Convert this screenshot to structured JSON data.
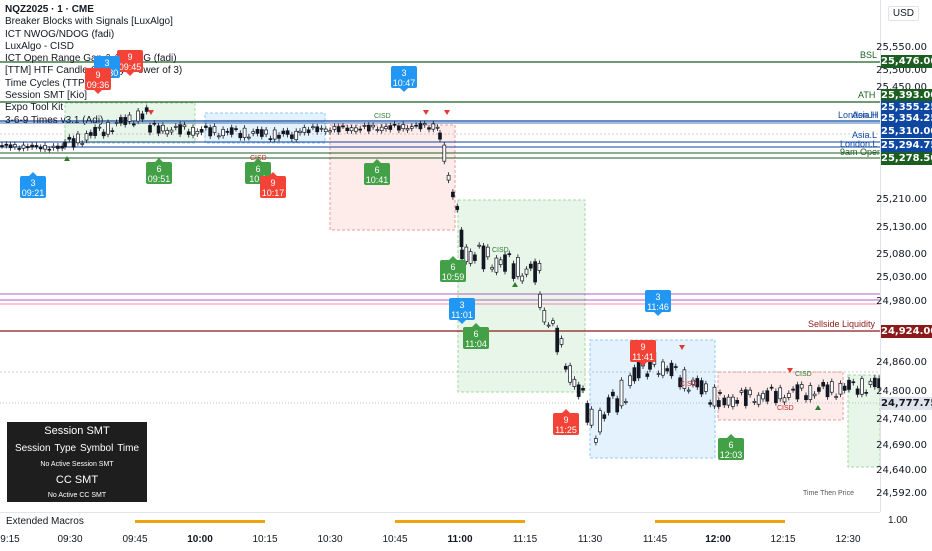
{
  "header": {
    "symbol_line": "NQZ2025 · 1 · CME",
    "indicators": [
      "Breaker Blocks with Signals [LuxAlgo]",
      "ICT NWOG/NDOG (fadi)",
      "LuxAlgo - CISD",
      "ICT Open Range Gap & 1st FVG (fadi)",
      "[TTM] HTF Candle Overlay (Power of 3)",
      "Time Cycles (TTP)",
      "Session SMT [Kio]",
      "Expo Tool Kit",
      "3-6-9 Times v3.1 (Adi)"
    ]
  },
  "currency": "USD",
  "price_axis": {
    "ticks": [
      "25,550.00",
      "25,500.00",
      "25,450.00",
      "25,210.00",
      "25,130.00",
      "25,080.00",
      "25,030.00",
      "24,980.00",
      "24,860.00",
      "24,800.00",
      "24,740.00",
      "24,690.00",
      "24,640.00",
      "24,592.00"
    ],
    "tags": [
      {
        "text": "25,476.00",
        "color": "#1b5e20"
      },
      {
        "text": "25,393.00",
        "color": "#1b5e20"
      },
      {
        "text": "25,355.25",
        "color": "#0d47a1"
      },
      {
        "text": "25,354.25",
        "color": "#0d47a1"
      },
      {
        "text": "25,310.00",
        "color": "#0d47a1"
      },
      {
        "text": "25,294.75",
        "color": "#0d47a1"
      },
      {
        "text": "25,278.50",
        "color": "#1b5e20"
      },
      {
        "text": "24,924.00",
        "color": "#8b1a1a"
      },
      {
        "text": "24,777.75",
        "color": "#e0e3eb"
      }
    ]
  },
  "levels": {
    "bsl": "BSL",
    "ath": "ATH",
    "london_h": "London.H",
    "asia_h": "Asia.H",
    "asia_l": "Asia.L",
    "london_l": "London.L",
    "nine_thirty": "9am Open",
    "sellside": "Sellside Liquidity",
    "cisd": "CISD"
  },
  "callouts": [
    {
      "num": "3",
      "time": "09:21",
      "color": "#2196f3"
    },
    {
      "num": "6",
      "time": "09:51",
      "color": "#43a047"
    },
    {
      "num": "6",
      "time": "10:1",
      "color": "#43a047"
    },
    {
      "num": "9",
      "time": "10:17",
      "color": "#f44336"
    },
    {
      "num": "6",
      "time": "10:41",
      "color": "#43a047"
    },
    {
      "num": "3",
      "time": "10:47",
      "color": "#2196f3"
    },
    {
      "num": "6",
      "time": "10:59",
      "color": "#43a047"
    },
    {
      "num": "3",
      "time": "11:01",
      "color": "#2196f3"
    },
    {
      "num": "6",
      "time": "11:04",
      "color": "#43a047"
    },
    {
      "num": "9",
      "time": "11:25",
      "color": "#f44336"
    },
    {
      "num": "9",
      "time": "11:41",
      "color": "#f44336"
    },
    {
      "num": "3",
      "time": "11:46",
      "color": "#2196f3"
    },
    {
      "num": "6",
      "time": "12:03",
      "color": "#43a047"
    },
    {
      "num": "9",
      "time": "09:45",
      "color": "#f44336"
    },
    {
      "num": "3",
      "time": "09:30",
      "color": "#2196f3"
    },
    {
      "num": "9",
      "time": "09:36",
      "color": "#f44336"
    }
  ],
  "smt_panel": {
    "title": "Session SMT",
    "cols": [
      "Session",
      "Type",
      "Symbol",
      "Time"
    ],
    "no_session": "No Active Session SMT",
    "cc_title": "CC SMT",
    "no_cc": "No Active CC SMT"
  },
  "time_axis": {
    "ticks": [
      "9:15",
      "09:30",
      "09:45",
      "10:00",
      "10:15",
      "10:30",
      "10:45",
      "11:00",
      "11:15",
      "11:30",
      "11:45",
      "12:00",
      "12:15",
      "12:30"
    ],
    "bold": [
      "10:00",
      "11:00",
      "12:00"
    ]
  },
  "macros": {
    "label": "Extended Macros",
    "axis_value": "1.00"
  },
  "bottom_note": "Time Then Price"
}
